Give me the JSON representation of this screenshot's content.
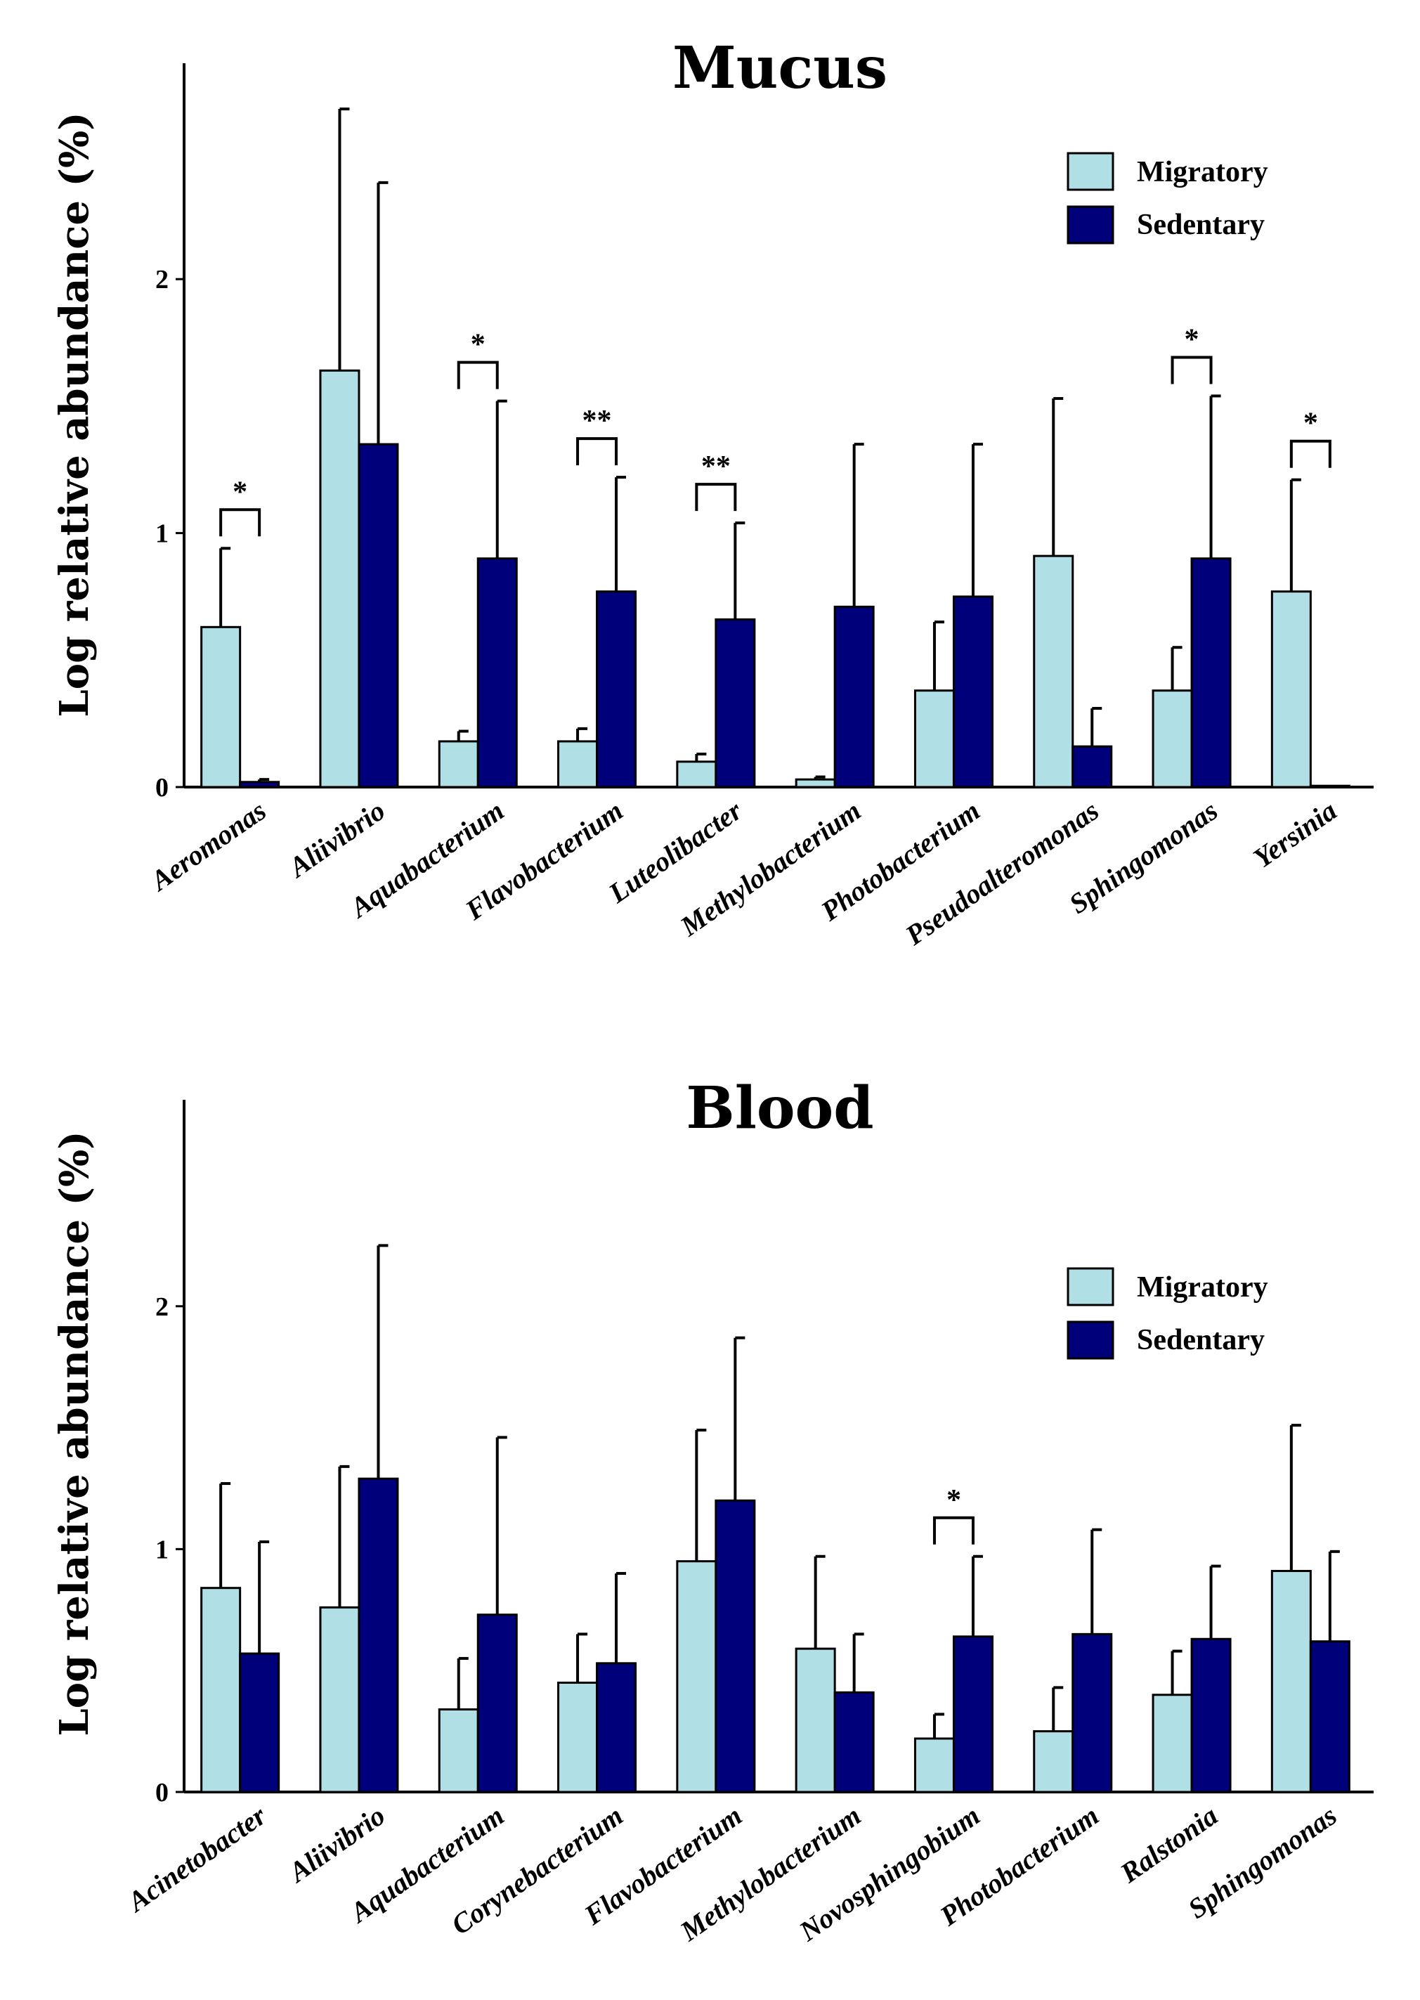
{
  "chart_data": [
    {
      "type": "bar",
      "title": "Mucus",
      "xlabel": "",
      "ylabel": "Log relative abundance (%)",
      "ylim": [
        0,
        2.85
      ],
      "yticks": [
        0,
        1,
        2
      ],
      "categories": [
        "Aeromonas",
        "Aliivibrio",
        "Aquabacterium",
        "Flavobacterium",
        "Luteolibacter",
        "Methylobacterium",
        "Photobacterium",
        "Pseudoalteromonas",
        "Sphingomonas",
        "Yersinia"
      ],
      "series": [
        {
          "name": "Migratory",
          "color": "#b0e0e6",
          "values": [
            0.63,
            1.64,
            0.18,
            0.18,
            0.1,
            0.03,
            0.38,
            0.91,
            0.38,
            0.77
          ],
          "errors": [
            0.31,
            1.03,
            0.04,
            0.05,
            0.03,
            0.01,
            0.27,
            0.62,
            0.17,
            0.44
          ]
        },
        {
          "name": "Sedentary",
          "color": "#00007a",
          "values": [
            0.02,
            1.35,
            0.9,
            0.77,
            0.66,
            0.71,
            0.75,
            0.16,
            0.9,
            0.005
          ],
          "errors": [
            0.01,
            1.03,
            0.62,
            0.45,
            0.38,
            0.64,
            0.6,
            0.15,
            0.64,
            0.0
          ]
        }
      ],
      "significance": [
        {
          "category_index": 0,
          "label": "*"
        },
        {
          "category_index": 2,
          "label": "*"
        },
        {
          "category_index": 3,
          "label": "**"
        },
        {
          "category_index": 4,
          "label": "**"
        },
        {
          "category_index": 8,
          "label": "*"
        },
        {
          "category_index": 9,
          "label": "*"
        }
      ],
      "legend": {
        "position": "top-right",
        "entries": [
          "Migratory",
          "Sedentary"
        ]
      }
    },
    {
      "type": "bar",
      "title": "Blood",
      "xlabel": "",
      "ylabel": "Log relative abundance (%)",
      "ylim": [
        0,
        2.85
      ],
      "yticks": [
        0,
        1,
        2
      ],
      "categories": [
        "Acinetobacter",
        "Aliivibrio",
        "Aquabacterium",
        "Corynebacterium",
        "Flavobacterium",
        "Methylobacterium",
        "Novosphingobium",
        "Photobacterium",
        "Ralstonia",
        "Sphingomonas"
      ],
      "series": [
        {
          "name": "Migratory",
          "color": "#b0e0e6",
          "values": [
            0.84,
            0.76,
            0.34,
            0.45,
            0.95,
            0.59,
            0.22,
            0.25,
            0.4,
            0.91
          ],
          "errors": [
            0.43,
            0.58,
            0.21,
            0.2,
            0.54,
            0.38,
            0.1,
            0.18,
            0.18,
            0.6
          ]
        },
        {
          "name": "Sedentary",
          "color": "#00007a",
          "values": [
            0.57,
            1.29,
            0.73,
            0.53,
            1.2,
            0.41,
            0.64,
            0.65,
            0.63,
            0.62
          ],
          "errors": [
            0.46,
            0.96,
            0.73,
            0.37,
            0.67,
            0.24,
            0.33,
            0.43,
            0.3,
            0.37
          ]
        }
      ],
      "significance": [
        {
          "category_index": 6,
          "label": "*"
        }
      ],
      "legend": {
        "position": "top-right",
        "entries": [
          "Migratory",
          "Sedentary"
        ]
      }
    }
  ]
}
